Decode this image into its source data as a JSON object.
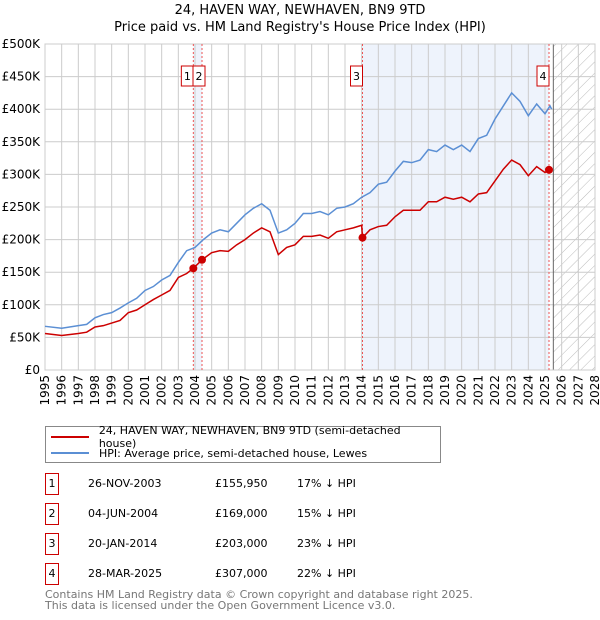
{
  "chart_data": {
    "type": "line",
    "title": "24, HAVEN WAY, NEWHAVEN, BN9 9TD",
    "subtitle": "Price paid vs. HM Land Registry's House Price Index (HPI)",
    "xlim": [
      1995,
      2028
    ],
    "ylim": [
      0,
      500000
    ],
    "x_ticks": [
      "1995",
      "1996",
      "1997",
      "1998",
      "1999",
      "2000",
      "2001",
      "2002",
      "2003",
      "2004",
      "2005",
      "2006",
      "2007",
      "2008",
      "2009",
      "2010",
      "2011",
      "2012",
      "2013",
      "2014",
      "2015",
      "2016",
      "2017",
      "2018",
      "2019",
      "2020",
      "2021",
      "2022",
      "2023",
      "2024",
      "2025",
      "2026",
      "2027",
      "2028"
    ],
    "y_ticks": [
      {
        "v": 0,
        "label": "£0"
      },
      {
        "v": 50000,
        "label": "£50K"
      },
      {
        "v": 100000,
        "label": "£100K"
      },
      {
        "v": 150000,
        "label": "£150K"
      },
      {
        "v": 200000,
        "label": "£200K"
      },
      {
        "v": 250000,
        "label": "£250K"
      },
      {
        "v": 300000,
        "label": "£300K"
      },
      {
        "v": 350000,
        "label": "£350K"
      },
      {
        "v": 400000,
        "label": "£400K"
      },
      {
        "v": 450000,
        "label": "£450K"
      },
      {
        "v": 500000,
        "label": "£500K"
      }
    ],
    "grid": true,
    "forecast_hatch_from": 2025.5,
    "series": [
      {
        "name": "24, HAVEN WAY, NEWHAVEN, BN9 9TD (semi-detached house)",
        "color": "#cc0000",
        "x": [
          1995,
          1996,
          1997,
          1997.5,
          1998,
          1998.5,
          1999,
          1999.5,
          2000,
          2000.5,
          2001,
          2001.5,
          2002,
          2002.5,
          2003,
          2003.5,
          2003.9,
          2004.42,
          2005,
          2005.5,
          2006,
          2006.5,
          2007,
          2007.5,
          2008,
          2008.5,
          2009,
          2009.5,
          2010,
          2010.5,
          2011,
          2011.5,
          2012,
          2012.5,
          2013,
          2013.5,
          2014,
          2014.05,
          2014.5,
          2015,
          2015.5,
          2016,
          2016.5,
          2017,
          2017.5,
          2018,
          2018.5,
          2019,
          2019.5,
          2020,
          2020.5,
          2021,
          2021.5,
          2022,
          2022.5,
          2023,
          2023.5,
          2024,
          2024.5,
          2025,
          2025.24,
          2025.4
        ],
        "y": [
          56000,
          53000,
          56000,
          58000,
          66000,
          68000,
          72000,
          76000,
          88000,
          92000,
          100000,
          108000,
          115000,
          122000,
          142000,
          148000,
          155950,
          169000,
          180000,
          183000,
          182000,
          192000,
          200000,
          210000,
          218000,
          212000,
          177000,
          188000,
          192000,
          205000,
          205000,
          207000,
          202000,
          212000,
          215000,
          218000,
          222000,
          203000,
          215000,
          220000,
          222000,
          235000,
          245000,
          245000,
          245000,
          258000,
          258000,
          265000,
          262000,
          265000,
          258000,
          270000,
          272000,
          290000,
          308000,
          322000,
          315000,
          298000,
          312000,
          303000,
          307000,
          310000
        ]
      },
      {
        "name": "HPI: Average price, semi-detached house, Lewes",
        "color": "#5b8fd4",
        "x": [
          1995,
          1996,
          1997,
          1997.5,
          1998,
          1998.5,
          1999,
          1999.5,
          2000,
          2000.5,
          2001,
          2001.5,
          2002,
          2002.5,
          2003,
          2003.5,
          2004,
          2004.5,
          2005,
          2005.5,
          2006,
          2006.5,
          2007,
          2007.5,
          2008,
          2008.5,
          2009,
          2009.5,
          2010,
          2010.5,
          2011,
          2011.5,
          2012,
          2012.5,
          2013,
          2013.5,
          2014,
          2014.5,
          2015,
          2015.5,
          2016,
          2016.5,
          2017,
          2017.5,
          2018,
          2018.5,
          2019,
          2019.5,
          2020,
          2020.5,
          2021,
          2021.5,
          2022,
          2022.5,
          2023,
          2023.5,
          2024,
          2024.5,
          2025,
          2025.3,
          2025.4
        ],
        "y": [
          67000,
          64000,
          68000,
          70000,
          80000,
          85000,
          88000,
          95000,
          103000,
          110000,
          122000,
          128000,
          138000,
          145000,
          165000,
          183000,
          188000,
          200000,
          210000,
          215000,
          212000,
          225000,
          238000,
          248000,
          255000,
          245000,
          210000,
          215000,
          225000,
          240000,
          240000,
          243000,
          238000,
          248000,
          250000,
          255000,
          265000,
          272000,
          285000,
          288000,
          305000,
          320000,
          318000,
          322000,
          338000,
          335000,
          345000,
          338000,
          345000,
          335000,
          355000,
          360000,
          385000,
          405000,
          425000,
          412000,
          390000,
          408000,
          393000,
          405000,
          400000
        ]
      }
    ],
    "sales": [
      {
        "label": "1",
        "x": 2003.9,
        "date": "26-NOV-2003",
        "price": 155950,
        "price_text": "£155,950",
        "hpi_text": "17% ↓ HPI"
      },
      {
        "label": "2",
        "x": 2004.42,
        "date": "04-JUN-2004",
        "price": 169000,
        "price_text": "£169,000",
        "hpi_text": "15% ↓ HPI"
      },
      {
        "label": "3",
        "x": 2014.05,
        "date": "20-JAN-2014",
        "price": 203000,
        "price_text": "£203,000",
        "hpi_text": "23% ↓ HPI"
      },
      {
        "label": "4",
        "x": 2025.24,
        "date": "28-MAR-2025",
        "price": 307000,
        "price_text": "£307,000",
        "hpi_text": "22% ↓ HPI"
      }
    ]
  },
  "footer": {
    "line1": "Contains HM Land Registry data © Crown copyright and database right 2025.",
    "line2": "This data is licensed under the Open Government Licence v3.0."
  }
}
